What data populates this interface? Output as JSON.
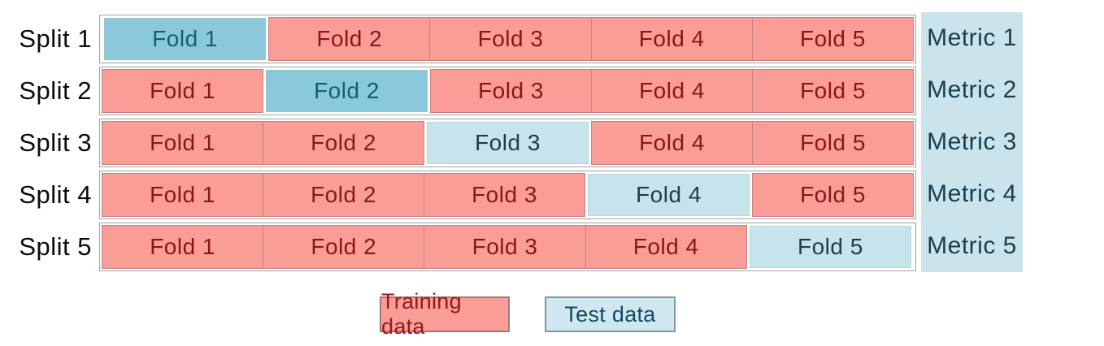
{
  "splits": [
    {
      "label": "Split 1",
      "folds": [
        "Fold 1",
        "Fold 2",
        "Fold 3",
        "Fold 4",
        "Fold 5"
      ],
      "test_fold": "Fold 1",
      "metric": "Metric 1"
    },
    {
      "label": "Split 2",
      "folds": [
        "Fold 1",
        "Fold 2",
        "Fold 3",
        "Fold 4",
        "Fold 5"
      ],
      "test_fold": "Fold 2",
      "metric": "Metric 2"
    },
    {
      "label": "Split 3",
      "folds": [
        "Fold 1",
        "Fold 2",
        "Fold 3",
        "Fold 4",
        "Fold 5"
      ],
      "test_fold": "Fold 3",
      "metric": "Metric 3"
    },
    {
      "label": "Split 4",
      "folds": [
        "Fold 1",
        "Fold 2",
        "Fold 3",
        "Fold 4",
        "Fold 5"
      ],
      "test_fold": "Fold 4",
      "metric": "Metric 4"
    },
    {
      "label": "Split 5",
      "folds": [
        "Fold 1",
        "Fold 2",
        "Fold 3",
        "Fold 4",
        "Fold 5"
      ],
      "test_fold": "Fold 5",
      "metric": "Metric 5"
    }
  ],
  "legend": {
    "training_label": "Training data",
    "test_label": "Test data"
  },
  "colors": {
    "training_fill": "#f99d96",
    "training_text": "#8b1616",
    "test_fill_medium": "#8ac8db",
    "test_text_medium": "#175e73",
    "test_fill_light": "#c7e3ec",
    "test_text_light": "#1b3d50",
    "metric_panel_fill": "#cbe3eb",
    "metric_text": "#193e50",
    "row_border": "#a0a0a0",
    "legend_training_border": "#a07874",
    "legend_test_border": "#7e95a2",
    "legend_test_fill": "#cfe7ef"
  }
}
